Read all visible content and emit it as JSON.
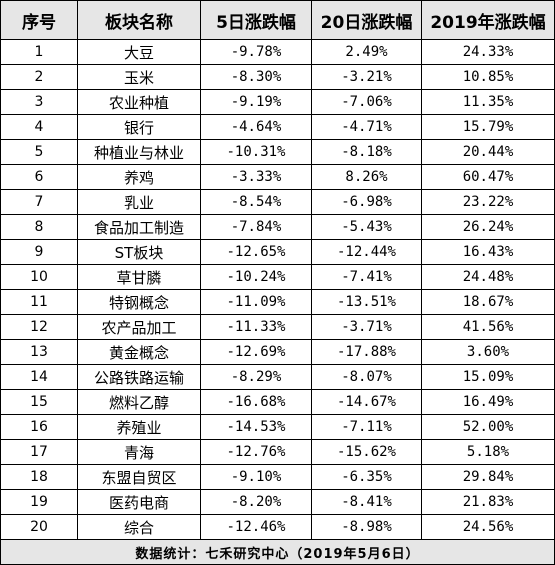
{
  "table": {
    "headers": [
      "序号",
      "板块名称",
      "5日涨跌幅",
      "20日涨跌幅",
      "2019年涨跌幅"
    ],
    "rows": [
      [
        "1",
        "大豆",
        "-9.78%",
        "2.49%",
        "24.33%"
      ],
      [
        "2",
        "玉米",
        "-8.30%",
        "-3.21%",
        "10.85%"
      ],
      [
        "3",
        "农业种植",
        "-9.19%",
        "-7.06%",
        "11.35%"
      ],
      [
        "4",
        "银行",
        "-4.64%",
        "-4.71%",
        "15.79%"
      ],
      [
        "5",
        "种植业与林业",
        "-10.31%",
        "-8.18%",
        "20.44%"
      ],
      [
        "6",
        "养鸡",
        "-3.33%",
        "8.26%",
        "60.47%"
      ],
      [
        "7",
        "乳业",
        "-8.54%",
        "-6.98%",
        "23.22%"
      ],
      [
        "8",
        "食品加工制造",
        "-7.84%",
        "-5.43%",
        "26.24%"
      ],
      [
        "9",
        "ST板块",
        "-12.65%",
        "-12.44%",
        "16.43%"
      ],
      [
        "10",
        "草甘膦",
        "-10.24%",
        "-7.41%",
        "24.48%"
      ],
      [
        "11",
        "特钢概念",
        "-11.09%",
        "-13.51%",
        "18.67%"
      ],
      [
        "12",
        "农产品加工",
        "-11.33%",
        "-3.71%",
        "41.56%"
      ],
      [
        "13",
        "黄金概念",
        "-12.69%",
        "-17.88%",
        "3.60%"
      ],
      [
        "14",
        "公路铁路运输",
        "-8.29%",
        "-8.07%",
        "15.09%"
      ],
      [
        "15",
        "燃料乙醇",
        "-16.68%",
        "-14.67%",
        "16.49%"
      ],
      [
        "16",
        "养殖业",
        "-14.53%",
        "-7.11%",
        "52.00%"
      ],
      [
        "17",
        "青海",
        "-12.76%",
        "-15.62%",
        "5.18%"
      ],
      [
        "18",
        "东盟自贸区",
        "-9.10%",
        "-6.35%",
        "29.84%"
      ],
      [
        "19",
        "医药电商",
        "-8.20%",
        "-8.41%",
        "21.83%"
      ],
      [
        "20",
        "综合",
        "-12.46%",
        "-8.98%",
        "24.56%"
      ]
    ],
    "footer": "数据统计：七禾研究中心（2019年5月6日）"
  }
}
